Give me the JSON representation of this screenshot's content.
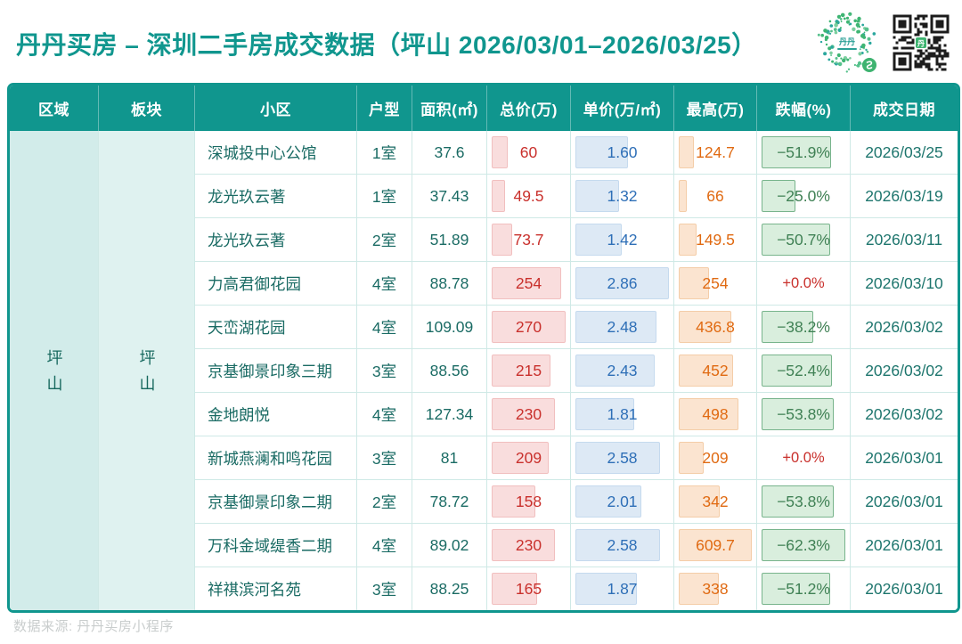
{
  "header": {
    "title": "丹丹买房 – 深圳二手房成交数据（坪山 2026/03/01–2026/03/25）"
  },
  "colors": {
    "accent_teal": "#10968e",
    "region_bg": "#d2ecea",
    "sector_bg": "#dff2f0",
    "cell_text": "#1a6b64",
    "total_price_red": "#c9302c",
    "unit_price_blue": "#2e6fb7",
    "highest_orange": "#e06a12",
    "drop_green": "#408155",
    "grid_line": "#cfe9e6"
  },
  "table": {
    "region": "坪山",
    "sector": "坪山",
    "columns": [
      {
        "key": "region",
        "label": "区域"
      },
      {
        "key": "sector",
        "label": "板块"
      },
      {
        "key": "community",
        "label": "小区"
      },
      {
        "key": "layout",
        "label": "户型"
      },
      {
        "key": "area",
        "label": "面积(㎡)"
      },
      {
        "key": "total_price",
        "label": "总价(万)"
      },
      {
        "key": "unit_price",
        "label": "单价(万/㎡)"
      },
      {
        "key": "highest",
        "label": "最高(万)"
      },
      {
        "key": "drop",
        "label": "跌幅(%)"
      },
      {
        "key": "date",
        "label": "成交日期"
      }
    ],
    "rows": [
      {
        "community": "深城投中心公馆",
        "layout": "1室",
        "area": "37.6",
        "total_price": "60",
        "unit_price": "1.60",
        "highest": "124.7",
        "drop": "−51.9%",
        "drop_pct": -51.9,
        "date": "2026/03/25"
      },
      {
        "community": "龙光玖云著",
        "layout": "1室",
        "area": "37.43",
        "total_price": "49.5",
        "unit_price": "1.32",
        "highest": "66",
        "drop": "−25.0%",
        "drop_pct": -25.0,
        "date": "2026/03/19"
      },
      {
        "community": "龙光玖云著",
        "layout": "2室",
        "area": "51.89",
        "total_price": "73.7",
        "unit_price": "1.42",
        "highest": "149.5",
        "drop": "−50.7%",
        "drop_pct": -50.7,
        "date": "2026/03/11"
      },
      {
        "community": "力高君御花园",
        "layout": "4室",
        "area": "88.78",
        "total_price": "254",
        "unit_price": "2.86",
        "highest": "254",
        "drop": "+0.0%",
        "drop_pct": 0.0,
        "date": "2026/03/10"
      },
      {
        "community": "天峦湖花园",
        "layout": "4室",
        "area": "109.09",
        "total_price": "270",
        "unit_price": "2.48",
        "highest": "436.8",
        "drop": "−38.2%",
        "drop_pct": -38.2,
        "date": "2026/03/02"
      },
      {
        "community": "京基御景印象三期",
        "layout": "3室",
        "area": "88.56",
        "total_price": "215",
        "unit_price": "2.43",
        "highest": "452",
        "drop": "−52.4%",
        "drop_pct": -52.4,
        "date": "2026/03/02"
      },
      {
        "community": "金地朗悦",
        "layout": "4室",
        "area": "127.34",
        "total_price": "230",
        "unit_price": "1.81",
        "highest": "498",
        "drop": "−53.8%",
        "drop_pct": -53.8,
        "date": "2026/03/02"
      },
      {
        "community": "新城燕澜和鸣花园",
        "layout": "3室",
        "area": "81",
        "total_price": "209",
        "unit_price": "2.58",
        "highest": "209",
        "drop": "+0.0%",
        "drop_pct": 0.0,
        "date": "2026/03/01"
      },
      {
        "community": "京基御景印象二期",
        "layout": "2室",
        "area": "78.72",
        "total_price": "158",
        "unit_price": "2.01",
        "highest": "342",
        "drop": "−53.8%",
        "drop_pct": -53.8,
        "date": "2026/03/01"
      },
      {
        "community": "万科金域缇香二期",
        "layout": "4室",
        "area": "89.02",
        "total_price": "230",
        "unit_price": "2.58",
        "highest": "609.7",
        "drop": "−62.3%",
        "drop_pct": -62.3,
        "date": "2026/03/01"
      },
      {
        "community": "祥祺滨河名苑",
        "layout": "3室",
        "area": "88.25",
        "total_price": "165",
        "unit_price": "1.87",
        "highest": "338",
        "drop": "−51.2%",
        "drop_pct": -51.2,
        "date": "2026/03/01"
      }
    ]
  },
  "footer": {
    "source": "数据来源: 丹丹买房小程序"
  }
}
